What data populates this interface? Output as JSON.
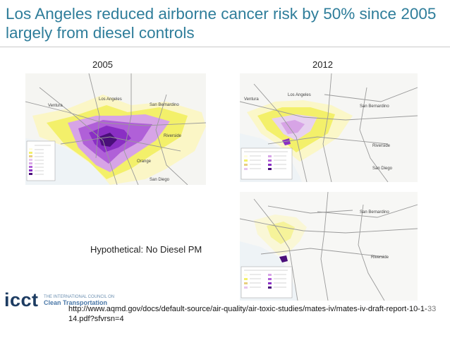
{
  "slide": {
    "title": "Los Angeles reduced airborne cancer risk by 50% since 2005 largely from diesel controls",
    "label_2005": "2005",
    "label_2012": "2012",
    "caption_hypothetical": "Hypothetical: No Diesel PM",
    "source_url": "http://www.aqmd.gov/docs/default-source/air-quality/air-toxic-studies/mates-iv/mates-iv-draft-report-10-1-14.pdf?sfvrsn=4",
    "page_number": "33"
  },
  "logo": {
    "name": "icct",
    "line1": "THE INTERNATIONAL COUNCIL ON",
    "line2": "Clean Transportation"
  },
  "maps": [
    {
      "id": "2005",
      "place_labels": [
        "Ventura",
        "Los Angeles",
        "San Bernardino",
        "Riverside",
        "Orange",
        "San Diego"
      ]
    },
    {
      "id": "2012",
      "place_labels": [
        "Ventura",
        "Los Angeles",
        "San Bernardino",
        "Riverside",
        "San Diego"
      ]
    },
    {
      "id": "no-diesel",
      "place_labels": [
        "San Bernardino",
        "Riverside"
      ]
    }
  ],
  "colors": {
    "title": "#2e7d9a",
    "risk_low": "#f3f06a",
    "risk_mid": "#d7a4e6",
    "risk_high": "#8a2fc4",
    "risk_very_high": "#4a0f7a"
  }
}
